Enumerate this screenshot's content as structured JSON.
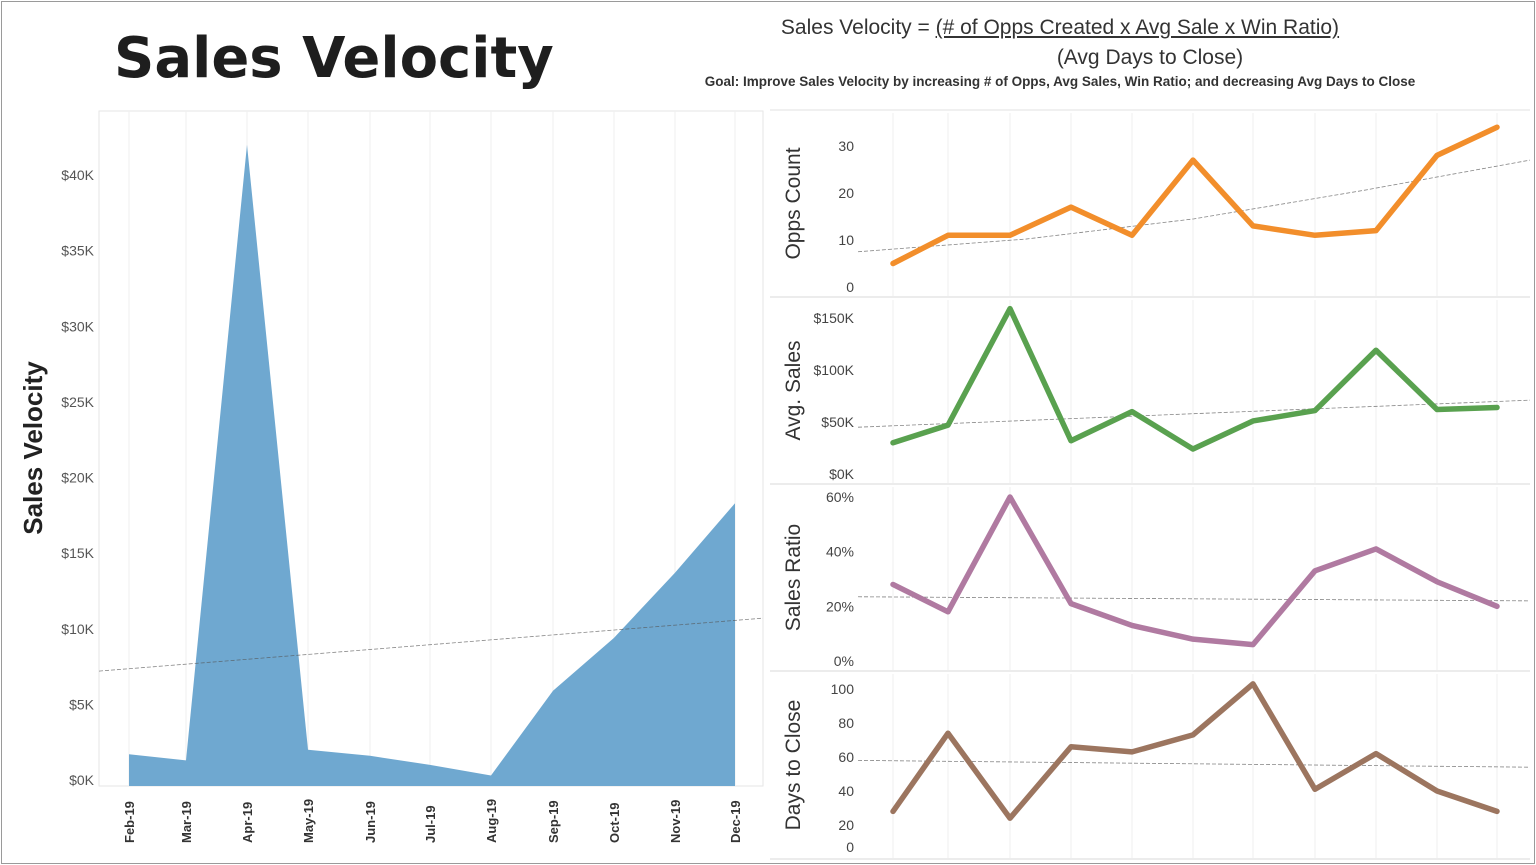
{
  "header": {
    "title": "Sales Velocity",
    "formula_lhs": "Sales Velocity = ",
    "formula_numerator": "(# of Opps Created x Avg Sale x Win Ratio)",
    "formula_denominator": "(Avg Days to Close)",
    "goal": "Goal: Improve Sales Velocity by increasing  # of Opps, Avg Sales, Win Ratio; and decreasing Avg Days to Close"
  },
  "chart_data": [
    {
      "type": "area",
      "ylabel": "Sales Velocity",
      "categories": [
        "Feb-19",
        "Mar-19",
        "Apr-19",
        "May-19",
        "Jun-19",
        "Jul-19",
        "Aug-19",
        "Sep-19",
        "Oct-19",
        "Nov-19",
        "Dec-19"
      ],
      "values": [
        1700,
        1300,
        42000,
        2000,
        1600,
        1000,
        300,
        5900,
        9400,
        13700,
        18300
      ],
      "trend": [
        7200,
        10700
      ],
      "ylim": [
        0,
        44000
      ],
      "yticks": [
        0,
        5000,
        10000,
        15000,
        20000,
        25000,
        30000,
        35000,
        40000
      ],
      "ytick_labels": [
        "$0K",
        "$5K",
        "$10K",
        "$15K",
        "$20K",
        "$25K",
        "$30K",
        "$35K",
        "$40K"
      ],
      "color": "#6fa8d0",
      "grid": "vertical"
    },
    {
      "type": "line",
      "ylabel": "Opps Count",
      "values": [
        5,
        11,
        11,
        17,
        11,
        27,
        13,
        11,
        12,
        28,
        34
      ],
      "trend": [
        7.5,
        10.2,
        14.5,
        20.5,
        27
      ],
      "ylim": [
        0,
        37
      ],
      "yticks": [
        0,
        10,
        20,
        30
      ],
      "ytick_labels": [
        "0",
        "10",
        "20",
        "30"
      ],
      "color": "#f28e2b"
    },
    {
      "type": "line",
      "ylabel": "Avg. Sales",
      "values": [
        30000,
        47000,
        159000,
        32000,
        60000,
        24000,
        51000,
        61000,
        119000,
        62000,
        64000
      ],
      "trend": [
        45000,
        71000
      ],
      "ylim": [
        0,
        165000
      ],
      "yticks": [
        0,
        50000,
        100000,
        150000
      ],
      "ytick_labels": [
        "$0K",
        "$50K",
        "$100K",
        "$150K"
      ],
      "color": "#59a14f"
    },
    {
      "type": "line",
      "ylabel": "Sales Ratio",
      "values": [
        28,
        18,
        60,
        21,
        13,
        8,
        6,
        33,
        41,
        29,
        20
      ],
      "trend": [
        23.5,
        22
      ],
      "ylim": [
        0,
        62
      ],
      "yticks": [
        0,
        20,
        40,
        60
      ],
      "ytick_labels": [
        "0%",
        "20%",
        "40%",
        "60%"
      ],
      "color": "#b07aa1"
    },
    {
      "type": "line",
      "ylabel": "Days to Close",
      "values": [
        28,
        74,
        24,
        66,
        63,
        73,
        103,
        41,
        62,
        40,
        28
      ],
      "trend": [
        58,
        54
      ],
      "ylim": [
        0,
        106
      ],
      "yticks": [
        0,
        20,
        40,
        60,
        80,
        100
      ],
      "ytick_labels": [
        "0",
        "20",
        "40",
        "60",
        "80",
        "100"
      ],
      "color": "#9c755f"
    }
  ]
}
